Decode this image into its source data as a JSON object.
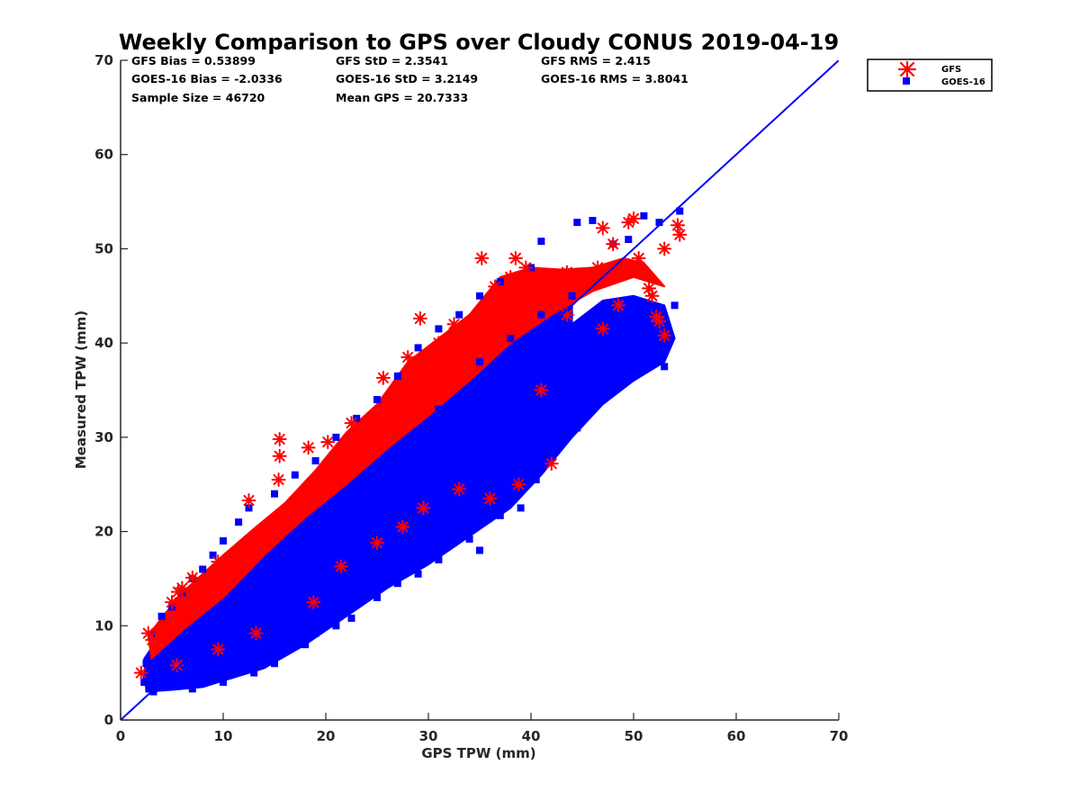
{
  "chart_data": {
    "type": "scatter",
    "title": "Weekly Comparison to GPS over Cloudy CONUS 2019-04-19",
    "xlabel": "GPS TPW (mm)",
    "ylabel": "Measured TPW (mm)",
    "xlim": [
      0,
      70
    ],
    "ylim": [
      0,
      70
    ],
    "xticks": [
      "0",
      "10",
      "20",
      "30",
      "40",
      "50",
      "60",
      "70"
    ],
    "yticks": [
      "0",
      "10",
      "20",
      "30",
      "40",
      "50",
      "60",
      "70"
    ],
    "grid": false,
    "legend_position": "outside top-right",
    "stats": [
      [
        "GFS Bias = 0.53899",
        "GFS StD = 2.3541",
        "GFS RMS = 2.415"
      ],
      [
        "GOES-16 Bias = -2.0336",
        "GOES-16 StD = 3.2149",
        "GOES-16 RMS = 3.8041"
      ],
      [
        "Sample Size = 46720",
        "Mean GPS = 20.7333",
        ""
      ]
    ],
    "reference_line": {
      "x": [
        0,
        70
      ],
      "y": [
        0,
        70
      ],
      "color": "#0000ff"
    },
    "series": [
      {
        "name": "GFS",
        "marker": "asterisk",
        "color": "#ff0000",
        "points": [
          [
            2,
            5
          ],
          [
            2.7,
            9.2
          ],
          [
            3.1,
            8.5
          ],
          [
            4,
            9.5
          ],
          [
            5,
            12.5
          ],
          [
            5.6,
            13.6
          ],
          [
            6,
            14
          ],
          [
            7,
            15.1
          ],
          [
            9.5,
            16.8
          ],
          [
            12.5,
            23.3
          ],
          [
            15.5,
            29.8
          ],
          [
            15.5,
            28
          ],
          [
            15.4,
            25.5
          ],
          [
            18.3,
            28.9
          ],
          [
            20.2,
            29.5
          ],
          [
            22.5,
            31.5
          ],
          [
            25.6,
            36.3
          ],
          [
            28,
            38.5
          ],
          [
            29.2,
            42.6
          ],
          [
            31,
            40
          ],
          [
            32.5,
            42
          ],
          [
            35.2,
            49
          ],
          [
            36.5,
            46
          ],
          [
            38,
            47
          ],
          [
            38.5,
            49
          ],
          [
            39.5,
            48
          ],
          [
            41.5,
            46.5
          ],
          [
            43.5,
            47.5
          ],
          [
            46.5,
            48
          ],
          [
            47,
            52.2
          ],
          [
            48,
            50.5
          ],
          [
            49.5,
            52.8
          ],
          [
            50,
            53.2
          ],
          [
            50.5,
            49
          ],
          [
            51,
            47.5
          ],
          [
            51.5,
            45.8
          ],
          [
            52.2,
            42.8
          ],
          [
            52.5,
            42.3
          ],
          [
            53,
            40.8
          ],
          [
            53,
            50
          ],
          [
            54.3,
            52.5
          ],
          [
            54.5,
            51.5
          ],
          [
            51.8,
            45
          ],
          [
            47,
            41.5
          ],
          [
            48.5,
            44
          ],
          [
            41,
            35
          ],
          [
            42,
            27.2
          ],
          [
            38.8,
            25
          ],
          [
            36,
            23.5
          ],
          [
            33,
            24.5
          ],
          [
            29.5,
            22.5
          ],
          [
            27.5,
            20.5
          ],
          [
            25,
            18.8
          ],
          [
            21.5,
            16.3
          ],
          [
            18.8,
            12.5
          ],
          [
            13.2,
            9.2
          ],
          [
            9.5,
            7.5
          ],
          [
            5.5,
            5.8
          ],
          [
            43.5,
            43
          ],
          [
            45.5,
            46.5
          ]
        ]
      },
      {
        "name": "GOES-16",
        "marker": "square",
        "color": "#0000ff",
        "points": [
          [
            2.5,
            4.5
          ],
          [
            3.2,
            3
          ],
          [
            4.5,
            3.5
          ],
          [
            7,
            3.3
          ],
          [
            10,
            4
          ],
          [
            13,
            5
          ],
          [
            15,
            6
          ],
          [
            18,
            8
          ],
          [
            19,
            9.2
          ],
          [
            21,
            10
          ],
          [
            22.5,
            10.8
          ],
          [
            25,
            13
          ],
          [
            27,
            14.5
          ],
          [
            29,
            15.5
          ],
          [
            31,
            17
          ],
          [
            34,
            19.2
          ],
          [
            35,
            18
          ],
          [
            37,
            21.7
          ],
          [
            39,
            22.5
          ],
          [
            40.5,
            25.5
          ],
          [
            41.5,
            27.5
          ],
          [
            42.5,
            29
          ],
          [
            44.5,
            31
          ],
          [
            45,
            33
          ],
          [
            47,
            34
          ],
          [
            48,
            35.5
          ],
          [
            49,
            37
          ],
          [
            50,
            38
          ],
          [
            51.5,
            37.5
          ],
          [
            53,
            37.5
          ],
          [
            54,
            44
          ],
          [
            54.5,
            54
          ],
          [
            52.5,
            52.8
          ],
          [
            51,
            53.5
          ],
          [
            49.5,
            51
          ],
          [
            48,
            50.5
          ],
          [
            46,
            53
          ],
          [
            44.5,
            52.8
          ],
          [
            41,
            50.8
          ],
          [
            40,
            48
          ],
          [
            37,
            46.5
          ],
          [
            35,
            45
          ],
          [
            33,
            43
          ],
          [
            31,
            41.5
          ],
          [
            29,
            39.5
          ],
          [
            27,
            36.5
          ],
          [
            25,
            34
          ],
          [
            23,
            32
          ],
          [
            21,
            30
          ],
          [
            19,
            27.5
          ],
          [
            17,
            26
          ],
          [
            15,
            24
          ],
          [
            12.5,
            22.5
          ],
          [
            11.5,
            21
          ],
          [
            10,
            19
          ],
          [
            9,
            17.5
          ],
          [
            8,
            16
          ],
          [
            7,
            15
          ],
          [
            6,
            13.5
          ],
          [
            5,
            12
          ],
          [
            4,
            11
          ],
          [
            3,
            9
          ],
          [
            2.5,
            6
          ],
          [
            2.3,
            4
          ],
          [
            26,
            26.5
          ],
          [
            28,
            24.5
          ],
          [
            31,
            33
          ],
          [
            35,
            38
          ],
          [
            38,
            40.5
          ],
          [
            41,
            43
          ],
          [
            44,
            45
          ]
        ]
      }
    ],
    "clouds": [
      {
        "series": "GOES-16",
        "lower": [
          [
            2.5,
            3
          ],
          [
            5,
            3.2
          ],
          [
            8,
            3.5
          ],
          [
            11,
            4.5
          ],
          [
            14,
            5.5
          ],
          [
            18,
            8
          ],
          [
            22,
            11
          ],
          [
            26,
            14
          ],
          [
            30,
            16.5
          ],
          [
            34,
            19.5
          ],
          [
            38,
            22.5
          ],
          [
            41,
            26
          ],
          [
            44,
            30
          ],
          [
            47,
            33.5
          ],
          [
            50,
            36
          ],
          [
            53,
            38
          ],
          [
            54,
            40.5
          ],
          [
            53,
            44
          ],
          [
            50,
            45
          ],
          [
            47,
            44.5
          ],
          [
            44,
            42
          ]
        ],
        "upper": [
          [
            2.3,
            6.5
          ],
          [
            4,
            9.2
          ],
          [
            6,
            12.3
          ],
          [
            8,
            14
          ],
          [
            10,
            17
          ],
          [
            12.5,
            19.5
          ],
          [
            15,
            22
          ],
          [
            18,
            25
          ],
          [
            21,
            28
          ],
          [
            24,
            30.5
          ],
          [
            27,
            34
          ],
          [
            30,
            37
          ],
          [
            33,
            40
          ],
          [
            36,
            42
          ],
          [
            39,
            44.5
          ],
          [
            41,
            46
          ],
          [
            44,
            46.5
          ]
        ]
      },
      {
        "series": "GFS",
        "lower": [
          [
            3,
            6.5
          ],
          [
            6,
            9.5
          ],
          [
            10,
            13
          ],
          [
            14,
            17.5
          ],
          [
            18,
            21.5
          ],
          [
            22,
            25
          ],
          [
            26,
            28.8
          ],
          [
            30,
            32.3
          ],
          [
            34,
            36
          ],
          [
            38,
            40
          ],
          [
            42,
            43
          ],
          [
            46,
            45.5
          ],
          [
            50,
            47
          ]
        ],
        "upper": [
          [
            2.7,
            9
          ],
          [
            4.5,
            11.5
          ],
          [
            6,
            13.5
          ],
          [
            8,
            15.5
          ],
          [
            10,
            17.5
          ],
          [
            13,
            20.3
          ],
          [
            16,
            23
          ],
          [
            19,
            26.5
          ],
          [
            22,
            30.5
          ],
          [
            25,
            33.5
          ],
          [
            28,
            38
          ],
          [
            31,
            40.5
          ],
          [
            34,
            43
          ],
          [
            37,
            47
          ],
          [
            40,
            48
          ],
          [
            43,
            47.8
          ],
          [
            46,
            48
          ],
          [
            49,
            49
          ],
          [
            51,
            48.5
          ],
          [
            53,
            46
          ],
          [
            50,
            47
          ]
        ]
      }
    ]
  }
}
